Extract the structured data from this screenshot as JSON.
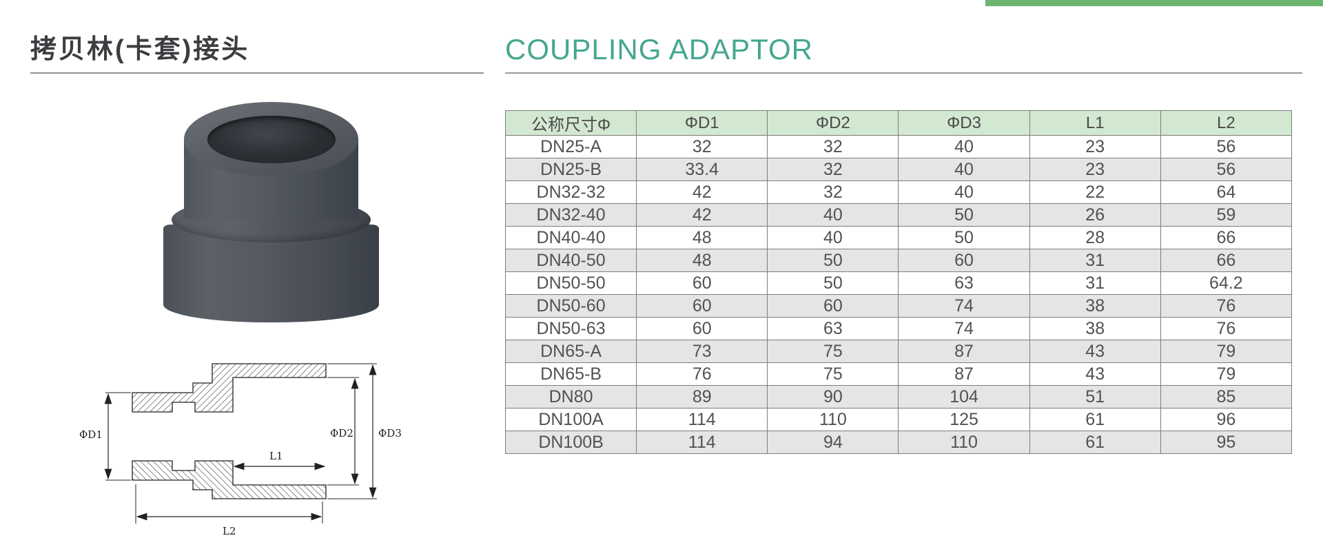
{
  "page": {
    "title_zh": "拷贝林(卡套)接头",
    "title_en": "COUPLING ADAPTOR",
    "accent_color": "#6eb471",
    "title_en_color": "#45a78f"
  },
  "drawing": {
    "label_d1": "ΦD1",
    "label_d2": "ΦD2",
    "label_d3": "ΦD3",
    "label_l1": "L1",
    "label_l2": "L2"
  },
  "table": {
    "header_bg": "#d3e8d0",
    "row_alt_bg": "#e4e5e4",
    "columns": [
      "公称尺寸Φ",
      "ΦD1",
      "ΦD2",
      "ΦD3",
      "L1",
      "L2"
    ],
    "rows": [
      [
        "DN25-A",
        "32",
        "32",
        "40",
        "23",
        "56"
      ],
      [
        "DN25-B",
        "33.4",
        "32",
        "40",
        "23",
        "56"
      ],
      [
        "DN32-32",
        "42",
        "32",
        "40",
        "22",
        "64"
      ],
      [
        "DN32-40",
        "42",
        "40",
        "50",
        "26",
        "59"
      ],
      [
        "DN40-40",
        "48",
        "40",
        "50",
        "28",
        "66"
      ],
      [
        "DN40-50",
        "48",
        "50",
        "60",
        "31",
        "66"
      ],
      [
        "DN50-50",
        "60",
        "50",
        "63",
        "31",
        "64.2"
      ],
      [
        "DN50-60",
        "60",
        "60",
        "74",
        "38",
        "76"
      ],
      [
        "DN50-63",
        "60",
        "63",
        "74",
        "38",
        "76"
      ],
      [
        "DN65-A",
        "73",
        "75",
        "87",
        "43",
        "79"
      ],
      [
        "DN65-B",
        "76",
        "75",
        "87",
        "43",
        "79"
      ],
      [
        "DN80",
        "89",
        "90",
        "104",
        "51",
        "85"
      ],
      [
        "DN100A",
        "114",
        "110",
        "125",
        "61",
        "96"
      ],
      [
        "DN100B",
        "114",
        "94",
        "110",
        "61",
        "95"
      ]
    ]
  }
}
